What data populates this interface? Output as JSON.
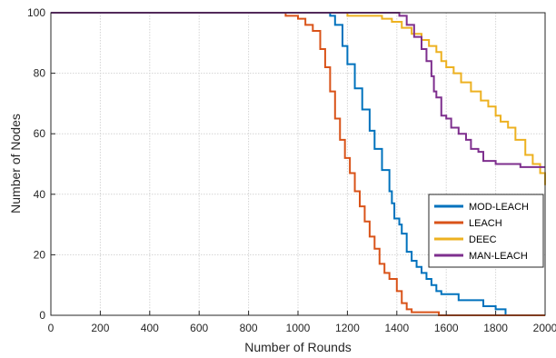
{
  "chart_data": {
    "type": "line",
    "title": "",
    "xlabel": "Number of Rounds",
    "ylabel": "Number of Nodes",
    "xlim": [
      0,
      2000
    ],
    "ylim": [
      0,
      100
    ],
    "xticks": [
      0,
      200,
      400,
      600,
      800,
      1000,
      1200,
      1400,
      1600,
      1800,
      2000
    ],
    "yticks": [
      0,
      20,
      40,
      60,
      80,
      100
    ],
    "grid": true,
    "legend_position": "lower-right",
    "series": [
      {
        "name": "MOD-LEACH",
        "color": "#0072BD",
        "x": [
          0,
          1130,
          1150,
          1180,
          1200,
          1230,
          1260,
          1290,
          1310,
          1340,
          1370,
          1380,
          1390,
          1400,
          1410,
          1420,
          1440,
          1460,
          1480,
          1500,
          1520,
          1540,
          1560,
          1580,
          1600,
          1650,
          1700,
          1750,
          1800,
          1830,
          1840,
          2000
        ],
        "y": [
          100,
          99,
          96,
          89,
          83,
          75,
          68,
          61,
          55,
          48,
          41,
          37,
          32,
          32,
          30,
          27,
          21,
          18,
          16,
          14,
          12,
          10,
          8,
          7,
          7,
          5,
          5,
          3,
          2,
          2,
          0,
          0
        ]
      },
      {
        "name": "LEACH",
        "color": "#D95319",
        "x": [
          0,
          950,
          1000,
          1030,
          1060,
          1090,
          1110,
          1130,
          1150,
          1170,
          1190,
          1210,
          1230,
          1250,
          1270,
          1290,
          1310,
          1330,
          1350,
          1370,
          1400,
          1420,
          1440,
          1460,
          1500,
          1550,
          1570,
          2000
        ],
        "y": [
          100,
          99,
          98,
          96,
          94,
          88,
          82,
          74,
          65,
          58,
          52,
          47,
          41,
          36,
          31,
          26,
          22,
          17,
          14,
          12,
          8,
          4,
          2,
          1,
          1,
          1,
          0,
          0
        ]
      },
      {
        "name": "DEEC",
        "color": "#EDB120",
        "x": [
          0,
          1130,
          1200,
          1250,
          1300,
          1340,
          1380,
          1420,
          1460,
          1500,
          1530,
          1560,
          1580,
          1600,
          1630,
          1660,
          1700,
          1740,
          1770,
          1800,
          1820,
          1850,
          1880,
          1920,
          1950,
          1980,
          2000
        ],
        "y": [
          100,
          100,
          99,
          99,
          99,
          98,
          97,
          95,
          93,
          91,
          89,
          87,
          84,
          82,
          80,
          77,
          74,
          71,
          69,
          66,
          64,
          62,
          58,
          53,
          50,
          47,
          43
        ]
      },
      {
        "name": "MAN-LEACH",
        "color": "#7E2F8E",
        "x": [
          0,
          1380,
          1410,
          1440,
          1470,
          1500,
          1520,
          1540,
          1550,
          1560,
          1580,
          1600,
          1620,
          1650,
          1680,
          1700,
          1730,
          1750,
          1780,
          1800,
          1850,
          1900,
          1950,
          2000
        ],
        "y": [
          100,
          100,
          99,
          96,
          92,
          88,
          84,
          79,
          74,
          72,
          66,
          65,
          62,
          60,
          58,
          55,
          54,
          51,
          51,
          50,
          50,
          49,
          49,
          49
        ]
      }
    ]
  }
}
